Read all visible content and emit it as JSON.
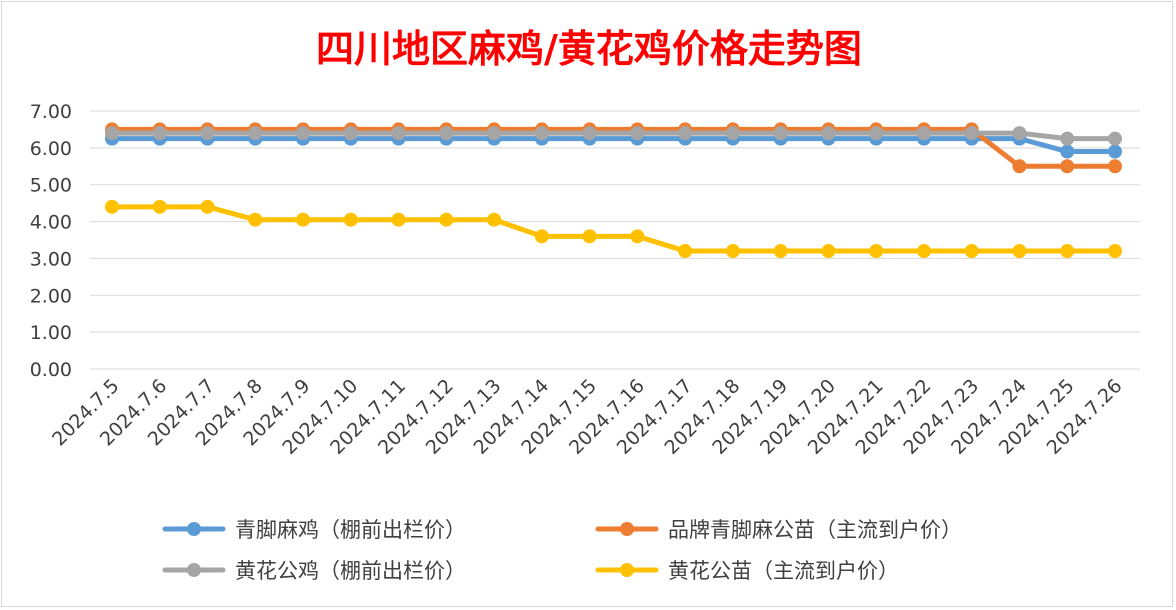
{
  "chart_data": {
    "type": "line",
    "title": "四川地区麻鸡/黄花鸡价格走势图",
    "xlabel": "",
    "ylabel": "",
    "ylim": [
      0,
      7
    ],
    "y_ticks": [
      "0.00",
      "1.00",
      "2.00",
      "3.00",
      "4.00",
      "5.00",
      "6.00",
      "7.00"
    ],
    "grid": true,
    "legend_position": "bottom",
    "categories": [
      "2024.7.5",
      "2024.7.6",
      "2024.7.7",
      "2024.7.8",
      "2024.7.9",
      "2024.7.10",
      "2024.7.11",
      "2024.7.12",
      "2024.7.13",
      "2024.7.14",
      "2024.7.15",
      "2024.7.16",
      "2024.7.17",
      "2024.7.18",
      "2024.7.19",
      "2024.7.20",
      "2024.7.21",
      "2024.7.22",
      "2024.7.23",
      "2024.7.24",
      "2024.7.25",
      "2024.7.26"
    ],
    "series": [
      {
        "name": "青脚麻鸡（棚前出栏价）",
        "color": "#5b9bd5",
        "values": [
          6.25,
          6.25,
          6.25,
          6.25,
          6.25,
          6.25,
          6.25,
          6.25,
          6.25,
          6.25,
          6.25,
          6.25,
          6.25,
          6.25,
          6.25,
          6.25,
          6.25,
          6.25,
          6.25,
          6.25,
          5.9,
          5.9
        ]
      },
      {
        "name": "品牌青脚麻公苗（主流到户价）",
        "color": "#ed7d31",
        "values": [
          6.5,
          6.5,
          6.5,
          6.5,
          6.5,
          6.5,
          6.5,
          6.5,
          6.5,
          6.5,
          6.5,
          6.5,
          6.5,
          6.5,
          6.5,
          6.5,
          6.5,
          6.5,
          6.5,
          5.5,
          5.5,
          5.5
        ]
      },
      {
        "name": "黄花公鸡（棚前出栏价）",
        "color": "#a5a5a5",
        "values": [
          6.4,
          6.4,
          6.4,
          6.4,
          6.4,
          6.4,
          6.4,
          6.4,
          6.4,
          6.4,
          6.4,
          6.4,
          6.4,
          6.4,
          6.4,
          6.4,
          6.4,
          6.4,
          6.4,
          6.4,
          6.25,
          6.25
        ]
      },
      {
        "name": "黄花公苗（主流到户价）",
        "color": "#ffc000",
        "values": [
          4.4,
          4.4,
          4.4,
          4.05,
          4.05,
          4.05,
          4.05,
          4.05,
          4.05,
          3.6,
          3.6,
          3.6,
          3.2,
          3.2,
          3.2,
          3.2,
          3.2,
          3.2,
          3.2,
          3.2,
          3.2,
          3.2
        ]
      }
    ]
  }
}
